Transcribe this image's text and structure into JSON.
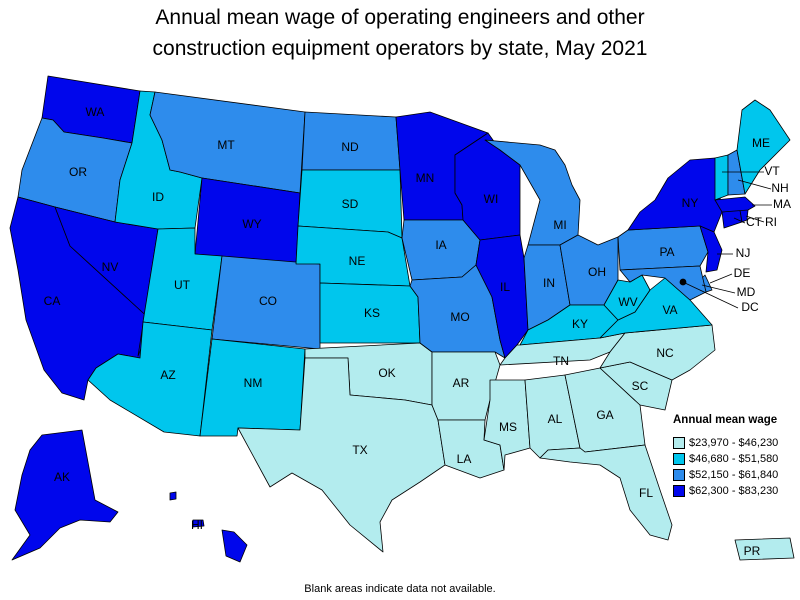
{
  "title_lines": [
    "Annual mean wage of operating engineers and other",
    "construction equipment operators by state, May 2021"
  ],
  "legend": {
    "title": "Annual mean wage",
    "bins": [
      {
        "label": "$23,970 - $46,230",
        "color": "#b3ecee"
      },
      {
        "label": "$46,680 - $51,580",
        "color": "#00c6ed"
      },
      {
        "label": "$52,150 - $61,840",
        "color": "#2e8cec"
      },
      {
        "label": "$62,300 - $83,230",
        "color": "#0006ec"
      }
    ]
  },
  "footnote": "Blank areas indicate data not available.",
  "states": [
    {
      "abbr": "WA",
      "bin": 3
    },
    {
      "abbr": "OR",
      "bin": 2
    },
    {
      "abbr": "CA",
      "bin": 3
    },
    {
      "abbr": "NV",
      "bin": 3
    },
    {
      "abbr": "ID",
      "bin": 1
    },
    {
      "abbr": "MT",
      "bin": 2
    },
    {
      "abbr": "WY",
      "bin": 3
    },
    {
      "abbr": "UT",
      "bin": 1
    },
    {
      "abbr": "AZ",
      "bin": 1
    },
    {
      "abbr": "CO",
      "bin": 2
    },
    {
      "abbr": "NM",
      "bin": 1
    },
    {
      "abbr": "ND",
      "bin": 2
    },
    {
      "abbr": "SD",
      "bin": 1
    },
    {
      "abbr": "NE",
      "bin": 1
    },
    {
      "abbr": "KS",
      "bin": 1
    },
    {
      "abbr": "OK",
      "bin": 0
    },
    {
      "abbr": "TX",
      "bin": 0
    },
    {
      "abbr": "MN",
      "bin": 3
    },
    {
      "abbr": "IA",
      "bin": 2
    },
    {
      "abbr": "MO",
      "bin": 2
    },
    {
      "abbr": "AR",
      "bin": 0
    },
    {
      "abbr": "LA",
      "bin": 0
    },
    {
      "abbr": "WI",
      "bin": 3
    },
    {
      "abbr": "IL",
      "bin": 3
    },
    {
      "abbr": "MI",
      "bin": 2
    },
    {
      "abbr": "IN",
      "bin": 2
    },
    {
      "abbr": "OH",
      "bin": 2
    },
    {
      "abbr": "KY",
      "bin": 1
    },
    {
      "abbr": "TN",
      "bin": 0
    },
    {
      "abbr": "MS",
      "bin": 0
    },
    {
      "abbr": "AL",
      "bin": 0
    },
    {
      "abbr": "GA",
      "bin": 0
    },
    {
      "abbr": "FL",
      "bin": 0
    },
    {
      "abbr": "SC",
      "bin": 0
    },
    {
      "abbr": "NC",
      "bin": 0
    },
    {
      "abbr": "VA",
      "bin": 1
    },
    {
      "abbr": "WV",
      "bin": 1
    },
    {
      "abbr": "PA",
      "bin": 2
    },
    {
      "abbr": "NY",
      "bin": 3
    },
    {
      "abbr": "NJ",
      "bin": 3
    },
    {
      "abbr": "DE",
      "bin": 2
    },
    {
      "abbr": "MD",
      "bin": 2
    },
    {
      "abbr": "DC",
      "bin": 3
    },
    {
      "abbr": "CT",
      "bin": 3
    },
    {
      "abbr": "RI",
      "bin": 3
    },
    {
      "abbr": "MA",
      "bin": 3
    },
    {
      "abbr": "VT",
      "bin": 1
    },
    {
      "abbr": "NH",
      "bin": 2
    },
    {
      "abbr": "ME",
      "bin": 1
    },
    {
      "abbr": "AK",
      "bin": 3
    },
    {
      "abbr": "HI",
      "bin": 3
    },
    {
      "abbr": "PR",
      "bin": 0
    }
  ]
}
